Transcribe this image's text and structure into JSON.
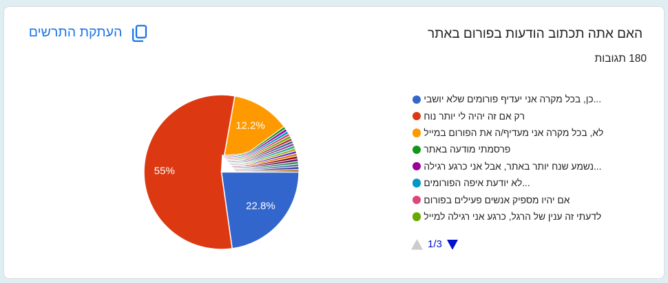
{
  "page": {
    "background_color": "#dfeef2",
    "card_color": "#ffffff"
  },
  "toolbar": {
    "copy_chart_label": "העתקת התרשים",
    "copy_chart_color": "#1a73e8"
  },
  "header": {
    "title": "האם אתה תכתוב הודעות בפורום באתר",
    "responses_count": "180 תגובות"
  },
  "chart_data": {
    "type": "pie",
    "title": "האם אתה תכתוב הודעות בפורום באתר",
    "total_responses": 180,
    "start_angle_deg": 0,
    "direction": "clockwise",
    "slices": [
      {
        "color": "#3366cc",
        "votes": 41,
        "pct_label": "22.8%"
      },
      {
        "color": "#dc3912",
        "votes": 99,
        "pct_label": "55%"
      },
      {
        "color": "#ff9900",
        "votes": 22,
        "pct_label": "12.2%"
      },
      {
        "color": "#109618",
        "votes": 1
      },
      {
        "color": "#990099",
        "votes": 1
      },
      {
        "color": "#0099c6",
        "votes": 1
      },
      {
        "color": "#dd4477",
        "votes": 1
      },
      {
        "color": "#66aa00",
        "votes": 1
      },
      {
        "color": "#b82e2e",
        "votes": 1
      },
      {
        "color": "#316395",
        "votes": 1
      },
      {
        "color": "#994499",
        "votes": 1
      },
      {
        "color": "#22aa99",
        "votes": 1
      },
      {
        "color": "#aaaa11",
        "votes": 1
      },
      {
        "color": "#6633cc",
        "votes": 1
      },
      {
        "color": "#e67300",
        "votes": 1
      },
      {
        "color": "#8b0707",
        "votes": 1
      },
      {
        "color": "#651067",
        "votes": 1
      },
      {
        "color": "#329262",
        "votes": 1
      },
      {
        "color": "#5574a6",
        "votes": 1
      },
      {
        "color": "#3b3eac",
        "votes": 1
      },
      {
        "color": "#b77322",
        "votes": 1
      }
    ],
    "legend_position": "right",
    "legend_items": [
      {
        "color": "#3366cc",
        "label": "כן, בכל מקרה אני יעדיף פורומים שלא יושבי..."
      },
      {
        "color": "#dc3912",
        "label": "רק אם זה יהיה לי יותר נוח"
      },
      {
        "color": "#ff9900",
        "label": "לא, בכל מקרה אני מעדיף/ה את הפורום במייל"
      },
      {
        "color": "#109618",
        "label": "פרסמתי מודעה באתר"
      },
      {
        "color": "#990099",
        "label": "נשמע שנח יותר באתר, אבל אני כרגע רגילה..."
      },
      {
        "color": "#0099c6",
        "label": "לא יודעת איפה הפורומים..."
      },
      {
        "color": "#dd4477",
        "label": "אם יהיו מספיק אנשים פעילים בפורום"
      },
      {
        "color": "#66aa00",
        "label": "לדעתי זה ענין של הרגל, כרגע אני רגילה למייל"
      }
    ],
    "legend_pager": {
      "page_label": "1/3",
      "prev_enabled": false,
      "next_enabled": true,
      "enabled_color": "#0011cc",
      "disabled_color": "#cccccc"
    }
  }
}
